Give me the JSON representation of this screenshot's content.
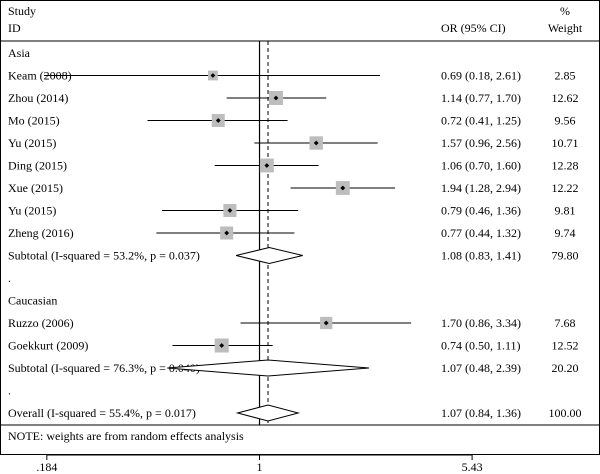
{
  "chart_data": {
    "type": "forest",
    "title": "",
    "header": {
      "col1_line1": "Study",
      "col1_line2": "ID",
      "col2": "OR (95% CI)",
      "col3_line1": "%",
      "col3_line2": "Weight"
    },
    "xscale": "log",
    "xlim": [
      0.151,
      6.78
    ],
    "xticks": [
      ".184",
      "1",
      "5.43"
    ],
    "xtick_values": [
      0.184,
      1,
      5.43
    ],
    "null_value": 1,
    "overall_estimate": 1.07,
    "rows": [
      {
        "kind": "group",
        "label": "Asia"
      },
      {
        "kind": "study",
        "label": "Keam (2008)",
        "or": 0.69,
        "lo": 0.18,
        "hi": 2.61,
        "ci_text": "0.69 (0.18, 2.61)",
        "weight": "2.85"
      },
      {
        "kind": "study",
        "label": "Zhou (2014)",
        "or": 1.14,
        "lo": 0.77,
        "hi": 1.7,
        "ci_text": "1.14 (0.77, 1.70)",
        "weight": "12.62"
      },
      {
        "kind": "study",
        "label": "Mo (2015)",
        "or": 0.72,
        "lo": 0.41,
        "hi": 1.25,
        "ci_text": "0.72 (0.41, 1.25)",
        "weight": "9.56"
      },
      {
        "kind": "study",
        "label": "Yu (2015)",
        "or": 1.57,
        "lo": 0.96,
        "hi": 2.56,
        "ci_text": "1.57 (0.96, 2.56)",
        "weight": "10.71"
      },
      {
        "kind": "study",
        "label": "Ding (2015)",
        "or": 1.06,
        "lo": 0.7,
        "hi": 1.6,
        "ci_text": "1.06 (0.70, 1.60)",
        "weight": "12.28"
      },
      {
        "kind": "study",
        "label": "Xue (2015)",
        "or": 1.94,
        "lo": 1.28,
        "hi": 2.94,
        "ci_text": "1.94 (1.28, 2.94)",
        "weight": "12.22"
      },
      {
        "kind": "study",
        "label": "Yu (2015)",
        "or": 0.79,
        "lo": 0.46,
        "hi": 1.36,
        "ci_text": "0.79 (0.46, 1.36)",
        "weight": "9.81"
      },
      {
        "kind": "study",
        "label": "Zheng (2016)",
        "or": 0.77,
        "lo": 0.44,
        "hi": 1.32,
        "ci_text": "0.77 (0.44, 1.32)",
        "weight": "9.74"
      },
      {
        "kind": "subtotal",
        "label": "Subtotal (I-squared = 53.2%, p = 0.037)",
        "or": 1.08,
        "lo": 0.83,
        "hi": 1.41,
        "ci_text": "1.08 (0.83, 1.41)",
        "weight": "79.80"
      },
      {
        "kind": "spacer",
        "label": "."
      },
      {
        "kind": "group",
        "label": "Caucasian"
      },
      {
        "kind": "study",
        "label": "Ruzzo (2006)",
        "or": 1.7,
        "lo": 0.86,
        "hi": 3.34,
        "ci_text": "1.70 (0.86, 3.34)",
        "weight": "7.68"
      },
      {
        "kind": "study",
        "label": "Goekkurt (2009)",
        "or": 0.74,
        "lo": 0.5,
        "hi": 1.11,
        "ci_text": "0.74 (0.50, 1.11)",
        "weight": "12.52"
      },
      {
        "kind": "subtotal",
        "label": "Subtotal (I-squared = 76.3%, p = 0.040)",
        "or": 1.07,
        "lo": 0.48,
        "hi": 2.39,
        "ci_text": "1.07 (0.48, 2.39)",
        "weight": "20.20"
      },
      {
        "kind": "spacer",
        "label": "."
      },
      {
        "kind": "overall",
        "label": "Overall (I-squared = 55.4%, p = 0.017)",
        "or": 1.07,
        "lo": 0.84,
        "hi": 1.36,
        "ci_text": "1.07 (0.84, 1.36)",
        "weight": "100.00"
      }
    ],
    "note": "NOTE: weights are from random effects analysis"
  }
}
